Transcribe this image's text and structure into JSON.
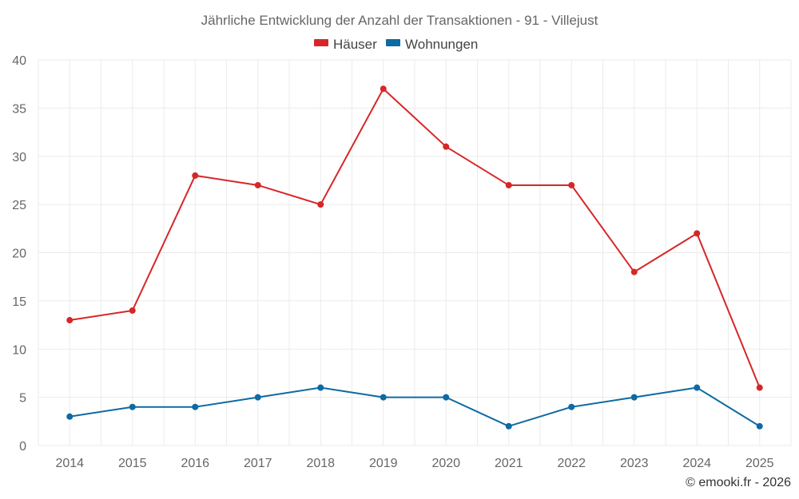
{
  "chart_data": {
    "type": "line",
    "title": "Jährliche Entwicklung der Anzahl der Transaktionen - 91 - Villejust",
    "categories": [
      "2014",
      "2015",
      "2016",
      "2017",
      "2018",
      "2019",
      "2020",
      "2021",
      "2022",
      "2023",
      "2024",
      "2025"
    ],
    "series": [
      {
        "name": "Häuser",
        "color": "#d62728",
        "values": [
          13,
          14,
          28,
          27,
          25,
          37,
          31,
          27,
          27,
          18,
          22,
          6
        ]
      },
      {
        "name": "Wohnungen",
        "color": "#0d6aa3",
        "values": [
          3,
          4,
          4,
          5,
          6,
          5,
          5,
          2,
          4,
          5,
          6,
          2
        ]
      }
    ],
    "yticks": [
      "0",
      "5",
      "10",
      "15",
      "20",
      "25",
      "30",
      "35",
      "40"
    ],
    "ylim": [
      0,
      40
    ],
    "grid": true,
    "legend_position": "top-center",
    "credit": "© emooki.fr - 2026"
  }
}
